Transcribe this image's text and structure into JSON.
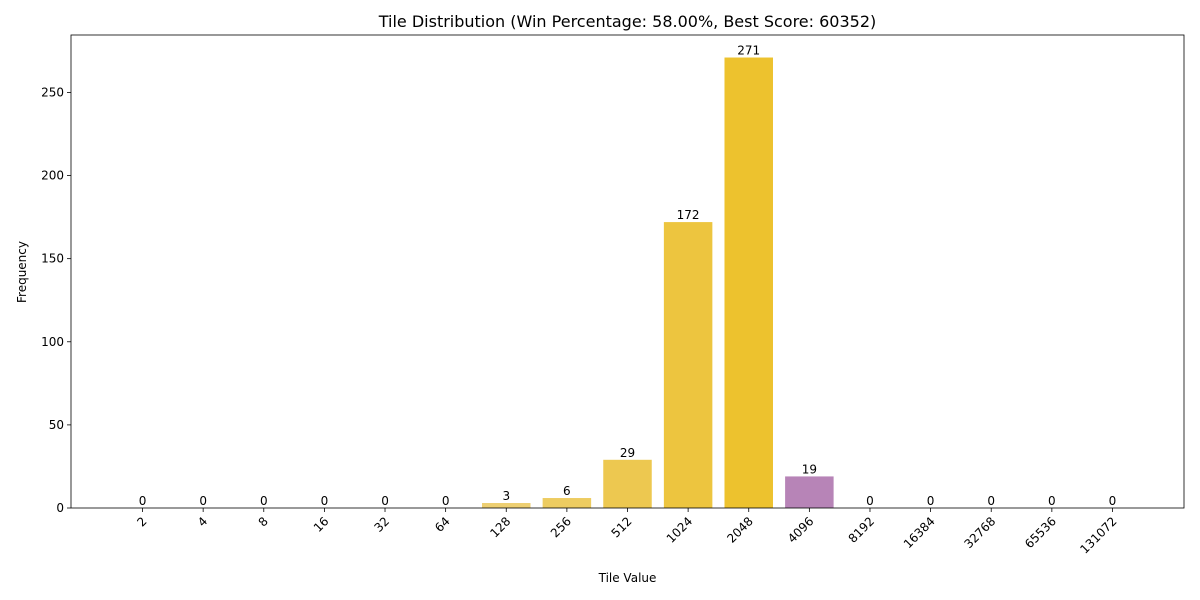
{
  "chart_data": {
    "type": "bar",
    "title": "Tile Distribution (Win Percentage: 58.00%, Best Score: 60352)",
    "xlabel": "Tile Value",
    "ylabel": "Frequency",
    "categories": [
      "2",
      "4",
      "8",
      "16",
      "32",
      "64",
      "128",
      "256",
      "512",
      "1024",
      "2048",
      "4096",
      "8192",
      "16384",
      "32768",
      "65536",
      "131072"
    ],
    "values": [
      0,
      0,
      0,
      0,
      0,
      0,
      3,
      6,
      29,
      172,
      271,
      19,
      0,
      0,
      0,
      0,
      0
    ],
    "bar_colors": [
      "#edc22e",
      "#edc22e",
      "#edc22e",
      "#edc22e",
      "#edc22e",
      "#edc22e",
      "#edcf72",
      "#edcc61",
      "#edc850",
      "#edc53f",
      "#edc22e",
      "#b784b7",
      "#edc22e",
      "#edc22e",
      "#edc22e",
      "#edc22e",
      "#edc22e"
    ],
    "yticks": [
      0,
      50,
      100,
      150,
      200,
      250
    ],
    "ylim": [
      0,
      284.55
    ],
    "x_tick_rotation": 45,
    "grid": false,
    "legend": false
  }
}
